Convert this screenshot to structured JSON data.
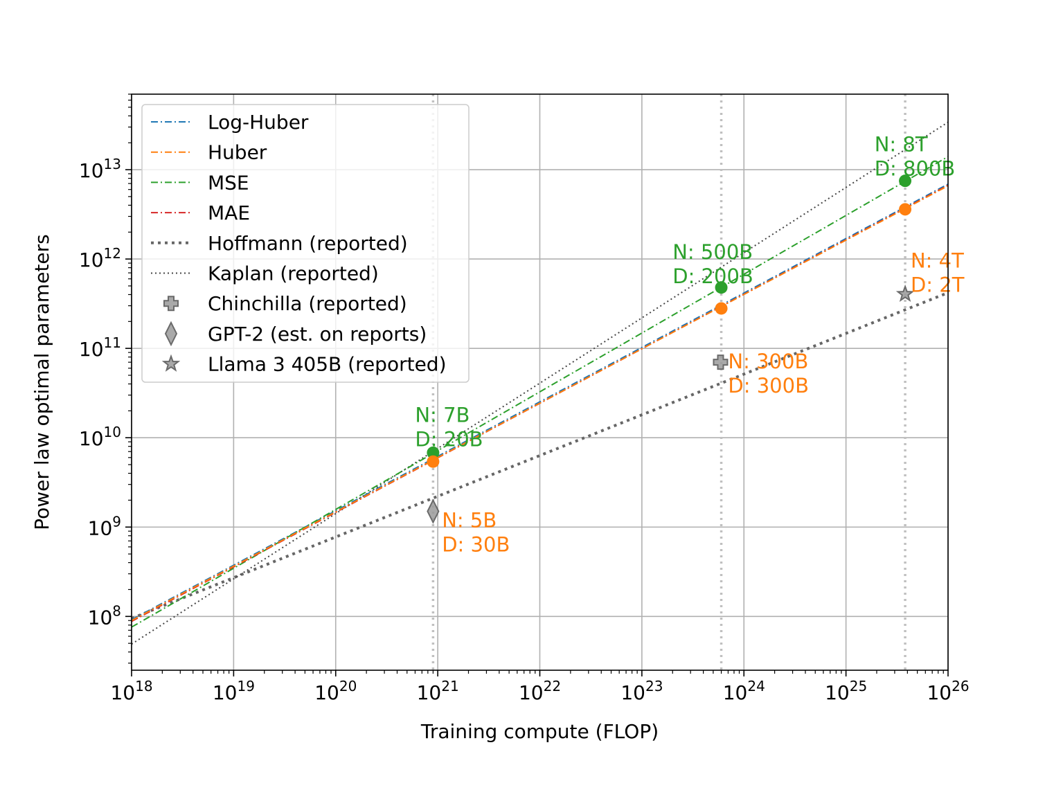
{
  "chart_data": {
    "type": "line",
    "xlabel": "Training compute (FLOP)",
    "ylabel": "Power law optimal parameters",
    "x_scale": "log",
    "y_scale": "log",
    "xlim": [
      1e+18,
      1e+26
    ],
    "ylim": [
      25000000.0,
      70000000000000.0
    ],
    "grid": true,
    "legend_position": "upper-left",
    "x_ticks": [
      {
        "base": "10",
        "exp": "18",
        "value": 1e+18
      },
      {
        "base": "10",
        "exp": "19",
        "value": 1e+19
      },
      {
        "base": "10",
        "exp": "20",
        "value": 1e+20
      },
      {
        "base": "10",
        "exp": "21",
        "value": 1e+21
      },
      {
        "base": "10",
        "exp": "22",
        "value": 1e+22
      },
      {
        "base": "10",
        "exp": "23",
        "value": 1e+23
      },
      {
        "base": "10",
        "exp": "24",
        "value": 1e+24
      },
      {
        "base": "10",
        "exp": "25",
        "value": 1e+25
      },
      {
        "base": "10",
        "exp": "26",
        "value": 1e+26
      }
    ],
    "y_ticks": [
      {
        "base": "10",
        "exp": "8",
        "value": 100000000.0
      },
      {
        "base": "10",
        "exp": "9",
        "value": 1000000000.0
      },
      {
        "base": "10",
        "exp": "10",
        "value": 10000000000.0
      },
      {
        "base": "10",
        "exp": "11",
        "value": 100000000000.0
      },
      {
        "base": "10",
        "exp": "12",
        "value": 1000000000000.0
      },
      {
        "base": "10",
        "exp": "13",
        "value": 10000000000000.0
      }
    ],
    "vertical_reference_lines": [
      9e+20,
      6e+23,
      3.8e+25
    ],
    "series": [
      {
        "name": "Log-Huber",
        "color": "#1f77b4",
        "style": "dashdot",
        "x": [
          1e+18,
          1e+26
        ],
        "y": [
          92000000.0,
          6900000000000.0
        ]
      },
      {
        "name": "Huber",
        "color": "#ff7f0e",
        "style": "dashdot",
        "x": [
          1e+18,
          1e+26
        ],
        "y": [
          90000000.0,
          6600000000000.0
        ]
      },
      {
        "name": "MSE",
        "color": "#2ca02c",
        "style": "dashdot",
        "x": [
          1e+18,
          1e+26
        ],
        "y": [
          76000000.0,
          14000000000000.0
        ]
      },
      {
        "name": "MAE",
        "color": "#d62728",
        "style": "dashdot",
        "x": [
          1e+18,
          1e+26
        ],
        "y": [
          88000000.0,
          6700000000000.0
        ]
      },
      {
        "name": "Hoffmann (reported)",
        "color": "#666666",
        "style": "dotted-thick",
        "x": [
          1e+18,
          1e+26
        ],
        "y": [
          95000000.0,
          420000000000.0
        ]
      },
      {
        "name": "Kaplan (reported)",
        "color": "#444444",
        "style": "dotted-thin",
        "x": [
          1e+18,
          1e+26
        ],
        "y": [
          49000000.0,
          34000000000000.0
        ]
      }
    ],
    "points": [
      {
        "x": 9e+20,
        "y": 6800000000.0,
        "color": "#2ca02c"
      },
      {
        "x": 9e+20,
        "y": 5400000000.0,
        "color": "#ff7f0e"
      },
      {
        "x": 6e+23,
        "y": 480000000000.0,
        "color": "#2ca02c"
      },
      {
        "x": 6e+23,
        "y": 280000000000.0,
        "color": "#ff7f0e"
      },
      {
        "x": 3.8e+25,
        "y": 7500000000000.0,
        "color": "#2ca02c"
      },
      {
        "x": 3.8e+25,
        "y": 3600000000000.0,
        "color": "#ff7f0e"
      }
    ],
    "markers": [
      {
        "name": "Chinchilla (reported)",
        "shape": "plus",
        "x": 5.9e+23,
        "y": 70000000000.0
      },
      {
        "name": "GPT-2 (est. on reports)",
        "shape": "diamond",
        "x": 9e+20,
        "y": 1500000000.0
      },
      {
        "name": "Llama 3 405B (reported)",
        "shape": "star",
        "x": 3.8e+25,
        "y": 405000000000.0
      }
    ],
    "annotations": [
      {
        "lines": [
          "N: 7B",
          "D: 20B"
        ],
        "color": "#2ca02c",
        "x": 6e+20,
        "y": 15000000000.0
      },
      {
        "lines": [
          "N: 5B",
          "D: 30B"
        ],
        "color": "#ff7f0e",
        "x": 1.1e+21,
        "y": 1000000000.0
      },
      {
        "lines": [
          "N: 500B",
          "D: 200B"
        ],
        "color": "#2ca02c",
        "x": 2e+23,
        "y": 1000000000000.0
      },
      {
        "lines": [
          "N: 300B",
          "D: 300B"
        ],
        "color": "#ff7f0e",
        "x": 7e+23,
        "y": 60000000000.0
      },
      {
        "lines": [
          "N: 8T",
          "D: 800B"
        ],
        "color": "#2ca02c",
        "x": 1.9e+25,
        "y": 16000000000000.0
      },
      {
        "lines": [
          "N: 4T",
          "D: 2T"
        ],
        "color": "#ff7f0e",
        "x": 4.3e+25,
        "y": 800000000000.0
      }
    ]
  }
}
